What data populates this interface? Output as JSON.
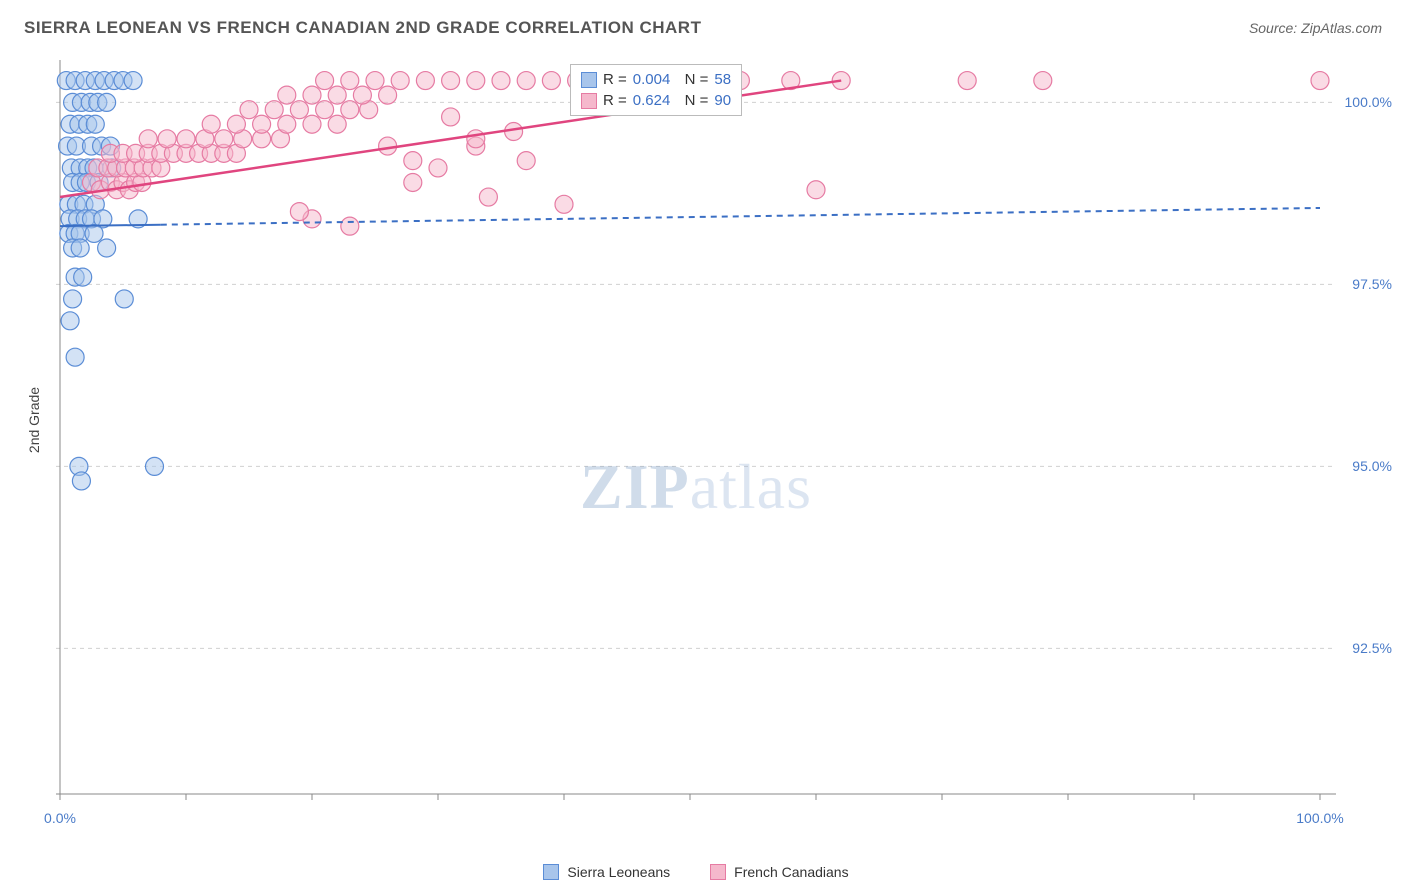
{
  "header": {
    "title": "SIERRA LEONEAN VS FRENCH CANADIAN 2ND GRADE CORRELATION CHART",
    "source": "Source: ZipAtlas.com"
  },
  "chart": {
    "type": "scatter",
    "ylabel": "2nd Grade",
    "xlim": [
      0,
      100
    ],
    "ylim": [
      90.5,
      100.5
    ],
    "xticks": [
      0,
      10,
      20,
      30,
      40,
      50,
      60,
      70,
      80,
      90,
      100
    ],
    "xtick_labels_visible": {
      "0": "0.0%",
      "100": "100.0%"
    },
    "yticks": [
      92.5,
      95.0,
      97.5,
      100.0
    ],
    "ytick_labels": [
      "92.5%",
      "95.0%",
      "97.5%",
      "100.0%"
    ],
    "grid_color": "#d0d0d0",
    "grid_dash": "4,4",
    "axis_color": "#888888",
    "background_color": "#ffffff",
    "marker_radius": 9,
    "marker_opacity": 0.5,
    "series": [
      {
        "name": "Sierra Leoneans",
        "color_fill": "#a8c5eb",
        "color_stroke": "#5b8dd6",
        "trend": {
          "x1": 0,
          "y1": 98.3,
          "x2": 100,
          "y2": 98.55,
          "solid_until_x": 8,
          "stroke": "#3b6fc4",
          "width": 2
        },
        "R": "0.004",
        "N": "58",
        "points": [
          [
            0.5,
            100.3
          ],
          [
            1.2,
            100.3
          ],
          [
            2.0,
            100.3
          ],
          [
            2.8,
            100.3
          ],
          [
            3.5,
            100.3
          ],
          [
            4.3,
            100.3
          ],
          [
            5.0,
            100.3
          ],
          [
            5.8,
            100.3
          ],
          [
            1.0,
            100.0
          ],
          [
            1.7,
            100.0
          ],
          [
            2.4,
            100.0
          ],
          [
            3.0,
            100.0
          ],
          [
            3.7,
            100.0
          ],
          [
            0.8,
            99.7
          ],
          [
            1.5,
            99.7
          ],
          [
            2.2,
            99.7
          ],
          [
            2.8,
            99.7
          ],
          [
            0.6,
            99.4
          ],
          [
            1.3,
            99.4
          ],
          [
            2.5,
            99.4
          ],
          [
            3.3,
            99.4
          ],
          [
            4.0,
            99.4
          ],
          [
            0.9,
            99.1
          ],
          [
            1.6,
            99.1
          ],
          [
            2.2,
            99.1
          ],
          [
            2.7,
            99.1
          ],
          [
            4.1,
            99.1
          ],
          [
            1.0,
            98.9
          ],
          [
            1.6,
            98.9
          ],
          [
            2.1,
            98.9
          ],
          [
            3.1,
            98.9
          ],
          [
            0.7,
            98.6
          ],
          [
            1.3,
            98.6
          ],
          [
            1.9,
            98.6
          ],
          [
            2.8,
            98.6
          ],
          [
            0.8,
            98.4
          ],
          [
            1.4,
            98.4
          ],
          [
            2.0,
            98.4
          ],
          [
            2.5,
            98.4
          ],
          [
            3.4,
            98.4
          ],
          [
            6.2,
            98.4
          ],
          [
            0.7,
            98.2
          ],
          [
            1.2,
            98.2
          ],
          [
            1.6,
            98.2
          ],
          [
            2.7,
            98.2
          ],
          [
            1.0,
            98.0
          ],
          [
            1.6,
            98.0
          ],
          [
            3.7,
            98.0
          ],
          [
            1.2,
            97.6
          ],
          [
            1.8,
            97.6
          ],
          [
            1.0,
            97.3
          ],
          [
            5.1,
            97.3
          ],
          [
            0.8,
            97.0
          ],
          [
            1.2,
            96.5
          ],
          [
            1.5,
            95.0
          ],
          [
            1.7,
            94.8
          ],
          [
            7.5,
            95.0
          ]
        ]
      },
      {
        "name": "French Canadians",
        "color_fill": "#f5b8cc",
        "color_stroke": "#e67ba3",
        "trend": {
          "x1": 0,
          "y1": 98.7,
          "x2": 62,
          "y2": 100.3,
          "solid_until_x": 62,
          "stroke": "#e0457f",
          "width": 2.5
        },
        "R": "0.624",
        "N": "90",
        "points": [
          [
            2.5,
            98.9
          ],
          [
            3.2,
            98.8
          ],
          [
            4.0,
            98.9
          ],
          [
            4.5,
            98.8
          ],
          [
            5.0,
            98.9
          ],
          [
            5.5,
            98.8
          ],
          [
            6.0,
            98.9
          ],
          [
            6.5,
            98.9
          ],
          [
            3.0,
            99.1
          ],
          [
            3.8,
            99.1
          ],
          [
            4.5,
            99.1
          ],
          [
            5.2,
            99.1
          ],
          [
            5.9,
            99.1
          ],
          [
            6.6,
            99.1
          ],
          [
            7.3,
            99.1
          ],
          [
            8.0,
            99.1
          ],
          [
            4.0,
            99.3
          ],
          [
            5.0,
            99.3
          ],
          [
            6.0,
            99.3
          ],
          [
            7.0,
            99.3
          ],
          [
            8.0,
            99.3
          ],
          [
            9.0,
            99.3
          ],
          [
            10.0,
            99.3
          ],
          [
            11.0,
            99.3
          ],
          [
            12.0,
            99.3
          ],
          [
            13.0,
            99.3
          ],
          [
            14.0,
            99.3
          ],
          [
            7.0,
            99.5
          ],
          [
            8.5,
            99.5
          ],
          [
            10.0,
            99.5
          ],
          [
            11.5,
            99.5
          ],
          [
            13.0,
            99.5
          ],
          [
            14.5,
            99.5
          ],
          [
            16.0,
            99.5
          ],
          [
            17.5,
            99.5
          ],
          [
            12.0,
            99.7
          ],
          [
            14.0,
            99.7
          ],
          [
            16.0,
            99.7
          ],
          [
            18.0,
            99.7
          ],
          [
            20.0,
            99.7
          ],
          [
            22.0,
            99.7
          ],
          [
            15.0,
            99.9
          ],
          [
            17.0,
            99.9
          ],
          [
            19.0,
            99.9
          ],
          [
            21.0,
            99.9
          ],
          [
            23.0,
            99.9
          ],
          [
            24.5,
            99.9
          ],
          [
            18.0,
            100.1
          ],
          [
            20.0,
            100.1
          ],
          [
            22.0,
            100.1
          ],
          [
            24.0,
            100.1
          ],
          [
            26.0,
            100.1
          ],
          [
            21.0,
            100.3
          ],
          [
            23.0,
            100.3
          ],
          [
            25.0,
            100.3
          ],
          [
            27.0,
            100.3
          ],
          [
            29.0,
            100.3
          ],
          [
            31.0,
            100.3
          ],
          [
            33.0,
            100.3
          ],
          [
            35.0,
            100.3
          ],
          [
            37.0,
            100.3
          ],
          [
            39.0,
            100.3
          ],
          [
            41.0,
            100.3
          ],
          [
            43.0,
            100.3
          ],
          [
            45.0,
            100.3
          ],
          [
            47.0,
            100.3
          ],
          [
            49.0,
            100.3
          ],
          [
            51.0,
            100.3
          ],
          [
            54.0,
            100.3
          ],
          [
            58.0,
            100.3
          ],
          [
            62.0,
            100.3
          ],
          [
            30.0,
            99.1
          ],
          [
            33.0,
            99.4
          ],
          [
            36.0,
            99.6
          ],
          [
            34.0,
            98.7
          ],
          [
            28.0,
            99.2
          ],
          [
            40.0,
            98.6
          ],
          [
            20.0,
            98.4
          ],
          [
            23.0,
            98.3
          ],
          [
            19.0,
            98.5
          ],
          [
            60.0,
            98.8
          ],
          [
            72.0,
            100.3
          ],
          [
            78.0,
            100.3
          ],
          [
            100.0,
            100.3
          ],
          [
            31.0,
            99.8
          ],
          [
            33.0,
            99.5
          ],
          [
            37.0,
            99.2
          ],
          [
            28.0,
            98.9
          ],
          [
            26.0,
            99.4
          ]
        ]
      }
    ]
  },
  "watermark": {
    "left": "ZIP",
    "right": "atlas"
  },
  "legend_bottom": [
    {
      "label": "Sierra Leoneans",
      "fill": "#a8c5eb",
      "stroke": "#5b8dd6"
    },
    {
      "label": "French Canadians",
      "fill": "#f5b8cc",
      "stroke": "#e67ba3"
    }
  ]
}
